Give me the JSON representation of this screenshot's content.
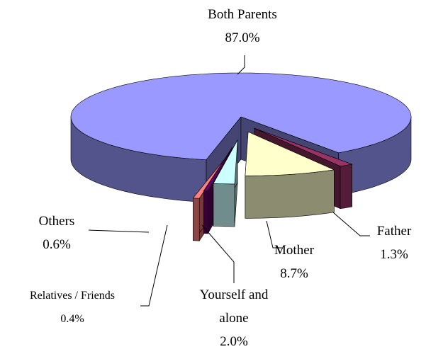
{
  "chart_data": {
    "type": "pie3d",
    "categories": [
      "Both Parents",
      "Father",
      "Mother",
      "Yourself and alone",
      "Relatives / Friends",
      "Others"
    ],
    "values": [
      87.0,
      1.3,
      8.7,
      2.0,
      0.4,
      0.6
    ],
    "value_labels": [
      "87.0%",
      "1.3%",
      "8.7%",
      "2.0%",
      "0.4%",
      "0.6%"
    ],
    "colors": [
      "#9999ff",
      "#993366",
      "#ffffcc",
      "#ccffff",
      "#660066",
      "#ff8080"
    ]
  }
}
